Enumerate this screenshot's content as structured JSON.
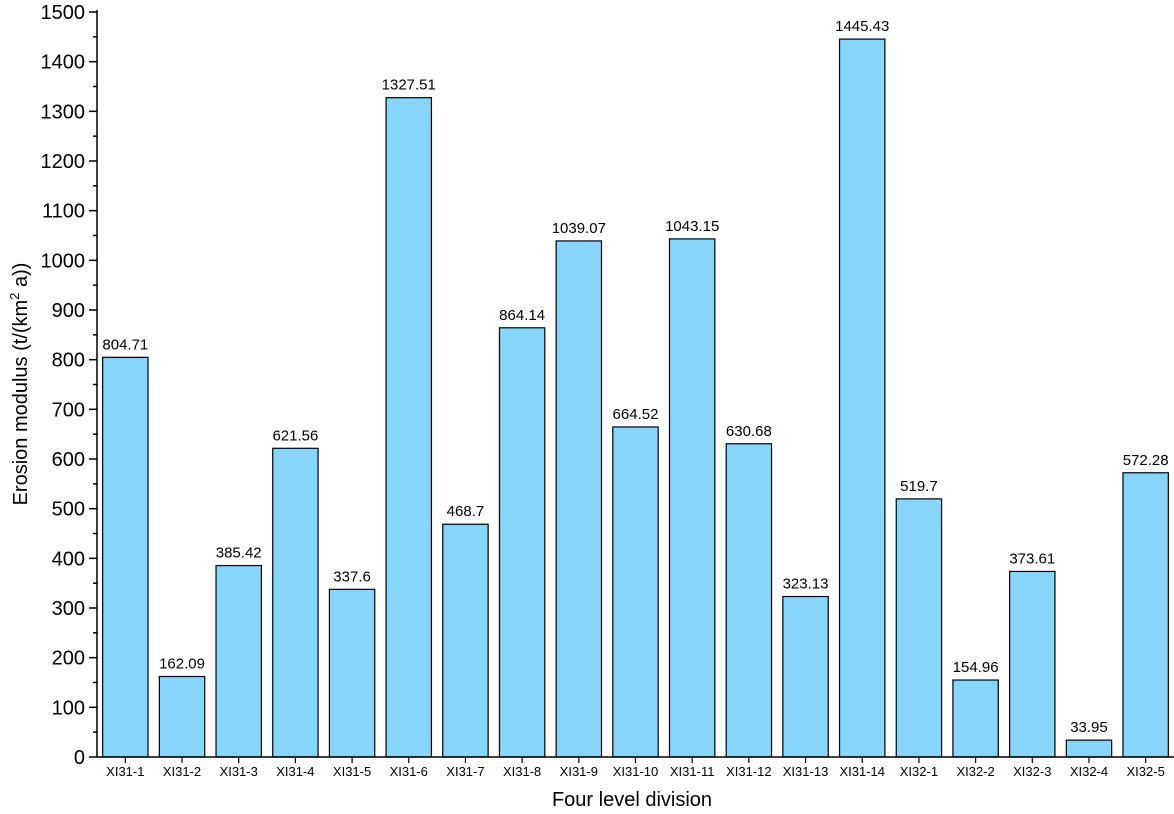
{
  "chart_data": {
    "type": "bar",
    "xlabel": "Four level division",
    "ylabel_main": "Erosion modulus (t/(km",
    "ylabel_sup": "2",
    "ylabel_tail": " a))",
    "ylim": [
      0,
      1500
    ],
    "ytick_step": 100,
    "bar_color": "#87d5fa",
    "categories": [
      "XI31-1",
      "XI31-2",
      "XI31-3",
      "XI31-4",
      "XI31-5",
      "XI31-6",
      "XI31-7",
      "XI31-8",
      "XI31-9",
      "XI31-10",
      "XI31-11",
      "XI31-12",
      "XI31-13",
      "XI31-14",
      "XI32-1",
      "XI32-2",
      "XI32-3",
      "XI32-4",
      "XI32-5"
    ],
    "values": [
      804.71,
      162.09,
      385.42,
      621.56,
      337.6,
      1327.51,
      468.7,
      864.14,
      1039.07,
      664.52,
      1043.15,
      630.68,
      323.13,
      1445.43,
      519.7,
      154.96,
      373.61,
      33.95,
      572.28
    ],
    "data_labels": [
      "804.71",
      "162.09",
      "385.42",
      "621.56",
      "337.6",
      "1327.51",
      "468.7",
      "864.14",
      "1039.07",
      "664.52",
      "1043.15",
      "630.68",
      "323.13",
      "1445.43",
      "519.7",
      "154.96",
      "373.61",
      "33.95",
      "572.28"
    ]
  }
}
